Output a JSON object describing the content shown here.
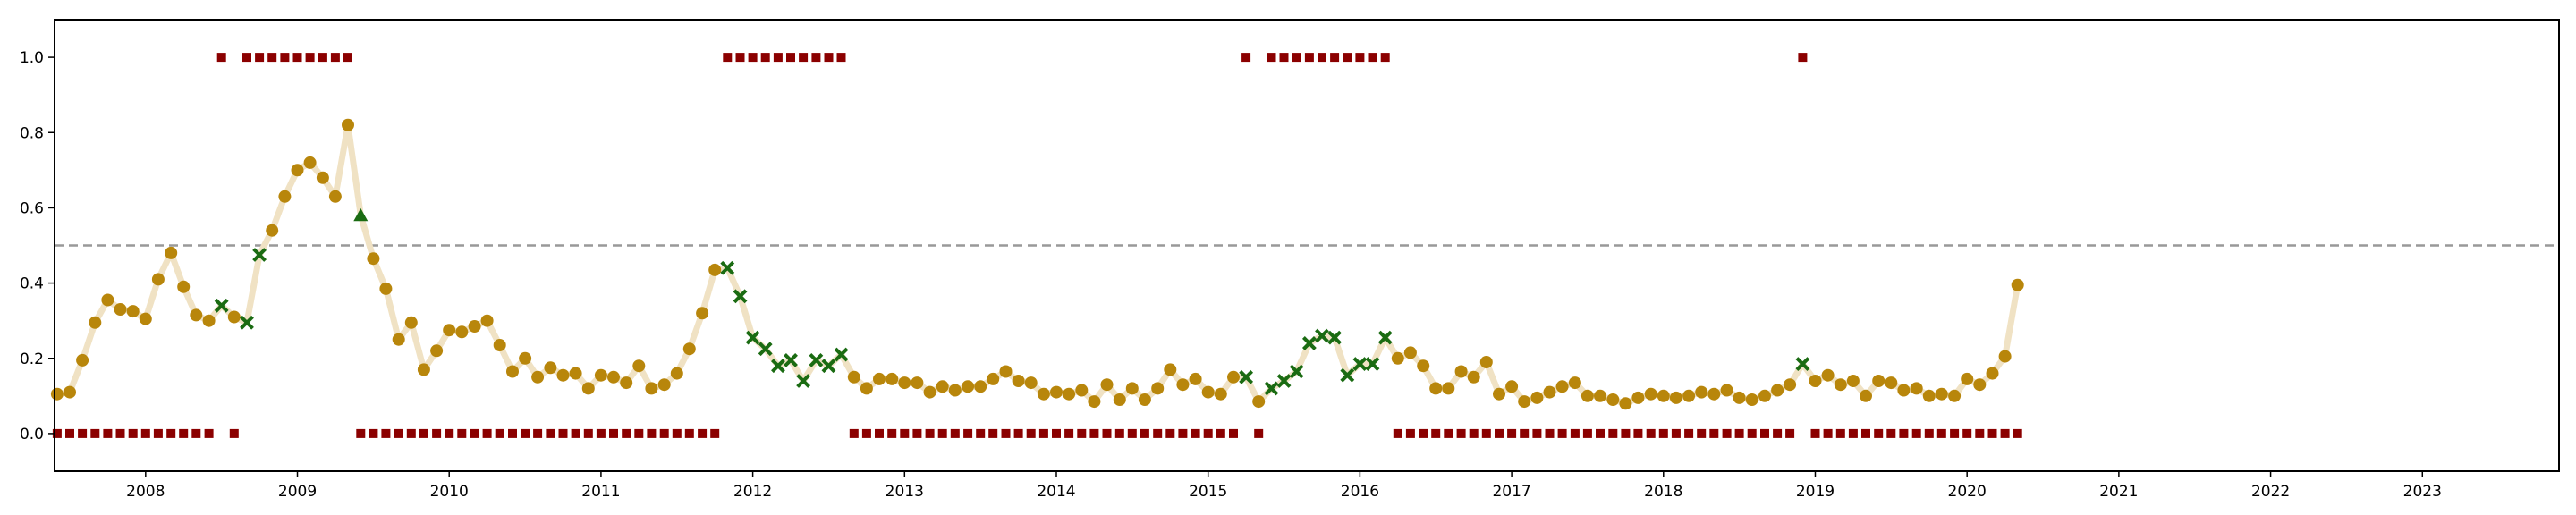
{
  "chart_data": {
    "type": "scatter",
    "title": "",
    "xlabel": "",
    "ylabel": "",
    "xlim": [
      2007.4,
      2023.9
    ],
    "ylim": [
      -0.1,
      1.1
    ],
    "grid": false,
    "x_ticks": [
      "2008",
      "2009",
      "2010",
      "2011",
      "2012",
      "2013",
      "2014",
      "2015",
      "2016",
      "2017",
      "2018",
      "2019",
      "2020",
      "2021",
      "2022",
      "2023"
    ],
    "y_ticks": [
      "0.0",
      "0.2",
      "0.4",
      "0.6",
      "0.8",
      "1.0"
    ],
    "threshold": 0.5,
    "colors": {
      "line": "#f0e2c4",
      "point": "#b8860b",
      "cross": "#1a6b12",
      "triangle": "#1a6b12",
      "square": "#8b0000",
      "threshold": "#999999",
      "axes": "#000000"
    },
    "probability_series": {
      "x": [
        2007.417,
        2007.5,
        2007.583,
        2007.667,
        2007.75,
        2007.833,
        2007.917,
        2008.0,
        2008.083,
        2008.167,
        2008.25,
        2008.333,
        2008.417,
        2008.5,
        2008.583,
        2008.667,
        2008.75,
        2008.833,
        2008.917,
        2009.0,
        2009.083,
        2009.167,
        2009.25,
        2009.333,
        2009.417,
        2009.5,
        2009.583,
        2009.667,
        2009.75,
        2009.833,
        2009.917,
        2010.0,
        2010.083,
        2010.167,
        2010.25,
        2010.333,
        2010.417,
        2010.5,
        2010.583,
        2010.667,
        2010.75,
        2010.833,
        2010.917,
        2011.0,
        2011.083,
        2011.167,
        2011.25,
        2011.333,
        2011.417,
        2011.5,
        2011.583,
        2011.667,
        2011.75,
        2011.833,
        2011.917,
        2012.0,
        2012.083,
        2012.167,
        2012.25,
        2012.333,
        2012.417,
        2012.5,
        2012.583,
        2012.667,
        2012.75,
        2012.833,
        2012.917,
        2013.0,
        2013.083,
        2013.167,
        2013.25,
        2013.333,
        2013.417,
        2013.5,
        2013.583,
        2013.667,
        2013.75,
        2013.833,
        2013.917,
        2014.0,
        2014.083,
        2014.167,
        2014.25,
        2014.333,
        2014.417,
        2014.5,
        2014.583,
        2014.667,
        2014.75,
        2014.833,
        2014.917,
        2015.0,
        2015.083,
        2015.167,
        2015.25,
        2015.333,
        2015.417,
        2015.5,
        2015.583,
        2015.667,
        2015.75,
        2015.833,
        2015.917,
        2016.0,
        2016.083,
        2016.167,
        2016.25,
        2016.333,
        2016.417,
        2016.5,
        2016.583,
        2016.667,
        2016.75,
        2016.833,
        2016.917,
        2017.0,
        2017.083,
        2017.167,
        2017.25,
        2017.333,
        2017.417,
        2017.5,
        2017.583,
        2017.667,
        2017.75,
        2017.833,
        2017.917,
        2018.0,
        2018.083,
        2018.167,
        2018.25,
        2018.333,
        2018.417,
        2018.5,
        2018.583,
        2018.667,
        2018.75,
        2018.833,
        2018.917,
        2019.0,
        2019.083,
        2019.167,
        2019.25,
        2019.333,
        2019.417,
        2019.5,
        2019.583,
        2019.667,
        2019.75,
        2019.833,
        2019.917,
        2020.0,
        2020.083,
        2020.167,
        2020.25,
        2020.333
      ],
      "y": [
        0.105,
        0.11,
        0.195,
        0.295,
        0.355,
        0.33,
        0.325,
        0.305,
        0.41,
        0.48,
        0.39,
        0.315,
        0.3,
        0.34,
        0.31,
        0.295,
        0.475,
        0.54,
        0.63,
        0.7,
        0.72,
        0.68,
        0.63,
        0.82,
        0.58,
        0.465,
        0.385,
        0.25,
        0.295,
        0.17,
        0.22,
        0.275,
        0.27,
        0.285,
        0.3,
        0.235,
        0.165,
        0.2,
        0.15,
        0.175,
        0.155,
        0.16,
        0.12,
        0.155,
        0.15,
        0.135,
        0.18,
        0.12,
        0.13,
        0.16,
        0.225,
        0.32,
        0.435,
        0.44,
        0.365,
        0.255,
        0.225,
        0.18,
        0.195,
        0.14,
        0.195,
        0.18,
        0.21,
        0.15,
        0.12,
        0.145,
        0.145,
        0.135,
        0.135,
        0.11,
        0.125,
        0.115,
        0.125,
        0.125,
        0.145,
        0.165,
        0.14,
        0.135,
        0.105,
        0.11,
        0.105,
        0.115,
        0.085,
        0.13,
        0.09,
        0.12,
        0.09,
        0.12,
        0.17,
        0.13,
        0.145,
        0.11,
        0.105,
        0.15,
        0.15,
        0.085,
        0.12,
        0.14,
        0.165,
        0.24,
        0.26,
        0.255,
        0.155,
        0.185,
        0.185,
        0.255,
        0.2,
        0.215,
        0.18,
        0.12,
        0.12,
        0.165,
        0.15,
        0.19,
        0.105,
        0.125,
        0.085,
        0.095,
        0.11,
        0.125,
        0.135,
        0.1,
        0.1,
        0.09,
        0.08,
        0.095,
        0.105,
        0.1,
        0.095,
        0.1,
        0.11,
        0.105,
        0.115,
        0.095,
        0.09,
        0.1,
        0.115,
        0.13,
        0.185,
        0.14,
        0.155,
        0.13,
        0.14,
        0.1,
        0.14,
        0.135,
        0.115,
        0.12,
        0.1,
        0.105,
        0.1,
        0.145,
        0.13,
        0.16,
        0.205,
        0.395
      ],
      "markers": [
        "circle",
        "circle",
        "circle",
        "circle",
        "circle",
        "circle",
        "circle",
        "circle",
        "circle",
        "circle",
        "circle",
        "circle",
        "circle",
        "x",
        "circle",
        "x",
        "x",
        "circle",
        "circle",
        "circle",
        "circle",
        "circle",
        "circle",
        "circle",
        "triangle",
        "circle",
        "circle",
        "circle",
        "circle",
        "circle",
        "circle",
        "circle",
        "circle",
        "circle",
        "circle",
        "circle",
        "circle",
        "circle",
        "circle",
        "circle",
        "circle",
        "circle",
        "circle",
        "circle",
        "circle",
        "circle",
        "circle",
        "circle",
        "circle",
        "circle",
        "circle",
        "circle",
        "circle",
        "x",
        "x",
        "x",
        "x",
        "x",
        "x",
        "x",
        "x",
        "x",
        "x",
        "circle",
        "circle",
        "circle",
        "circle",
        "circle",
        "circle",
        "circle",
        "circle",
        "circle",
        "circle",
        "circle",
        "circle",
        "circle",
        "circle",
        "circle",
        "circle",
        "circle",
        "circle",
        "circle",
        "circle",
        "circle",
        "circle",
        "circle",
        "circle",
        "circle",
        "circle",
        "circle",
        "circle",
        "circle",
        "circle",
        "circle",
        "x",
        "circle",
        "x",
        "x",
        "x",
        "x",
        "x",
        "x",
        "x",
        "x",
        "x",
        "x",
        "circle",
        "circle",
        "circle",
        "circle",
        "circle",
        "circle",
        "circle",
        "circle",
        "circle",
        "circle",
        "circle",
        "circle",
        "circle",
        "circle",
        "circle",
        "circle",
        "circle",
        "circle",
        "circle",
        "circle",
        "circle",
        "circle",
        "circle",
        "circle",
        "circle",
        "circle",
        "circle",
        "circle",
        "circle",
        "circle",
        "circle",
        "circle",
        "x",
        "circle",
        "circle",
        "circle",
        "circle",
        "circle",
        "circle",
        "circle",
        "circle",
        "circle",
        "circle",
        "circle",
        "circle",
        "circle",
        "circle",
        "circle",
        "circle",
        "circle"
      ]
    },
    "binary_series": {
      "x": [
        2007.417,
        2007.5,
        2007.583,
        2007.667,
        2007.75,
        2007.833,
        2007.917,
        2008.0,
        2008.083,
        2008.167,
        2008.25,
        2008.333,
        2008.417,
        2008.5,
        2008.583,
        2008.667,
        2008.75,
        2008.833,
        2008.917,
        2009.0,
        2009.083,
        2009.167,
        2009.25,
        2009.333,
        2009.417,
        2009.5,
        2009.583,
        2009.667,
        2009.75,
        2009.833,
        2009.917,
        2010.0,
        2010.083,
        2010.167,
        2010.25,
        2010.333,
        2010.417,
        2010.5,
        2010.583,
        2010.667,
        2010.75,
        2010.833,
        2010.917,
        2011.0,
        2011.083,
        2011.167,
        2011.25,
        2011.333,
        2011.417,
        2011.5,
        2011.583,
        2011.667,
        2011.75,
        2011.833,
        2011.917,
        2012.0,
        2012.083,
        2012.167,
        2012.25,
        2012.333,
        2012.417,
        2012.5,
        2012.583,
        2012.667,
        2012.75,
        2012.833,
        2012.917,
        2013.0,
        2013.083,
        2013.167,
        2013.25,
        2013.333,
        2013.417,
        2013.5,
        2013.583,
        2013.667,
        2013.75,
        2013.833,
        2013.917,
        2014.0,
        2014.083,
        2014.167,
        2014.25,
        2014.333,
        2014.417,
        2014.5,
        2014.583,
        2014.667,
        2014.75,
        2014.833,
        2014.917,
        2015.0,
        2015.083,
        2015.167,
        2015.25,
        2015.333,
        2015.417,
        2015.5,
        2015.583,
        2015.667,
        2015.75,
        2015.833,
        2015.917,
        2016.0,
        2016.083,
        2016.167,
        2016.25,
        2016.333,
        2016.417,
        2016.5,
        2016.583,
        2016.667,
        2016.75,
        2016.833,
        2016.917,
        2017.0,
        2017.083,
        2017.167,
        2017.25,
        2017.333,
        2017.417,
        2017.5,
        2017.583,
        2017.667,
        2017.75,
        2017.833,
        2017.917,
        2018.0,
        2018.083,
        2018.167,
        2018.25,
        2018.333,
        2018.417,
        2018.5,
        2018.583,
        2018.667,
        2018.75,
        2018.833,
        2018.917,
        2019.0,
        2019.083,
        2019.167,
        2019.25,
        2019.333,
        2019.417,
        2019.5,
        2019.583,
        2019.667,
        2019.75,
        2019.833,
        2019.917,
        2020.0,
        2020.083,
        2020.167,
        2020.25,
        2020.333
      ],
      "y": [
        0,
        0,
        0,
        0,
        0,
        0,
        0,
        0,
        0,
        0,
        0,
        0,
        0,
        1,
        0,
        1,
        1,
        1,
        1,
        1,
        1,
        1,
        1,
        1,
        0,
        0,
        0,
        0,
        0,
        0,
        0,
        0,
        0,
        0,
        0,
        0,
        0,
        0,
        0,
        0,
        0,
        0,
        0,
        0,
        0,
        0,
        0,
        0,
        0,
        0,
        0,
        0,
        0,
        1,
        1,
        1,
        1,
        1,
        1,
        1,
        1,
        1,
        1,
        0,
        0,
        0,
        0,
        0,
        0,
        0,
        0,
        0,
        0,
        0,
        0,
        0,
        0,
        0,
        0,
        0,
        0,
        0,
        0,
        0,
        0,
        0,
        0,
        0,
        0,
        0,
        0,
        0,
        0,
        0,
        1,
        0,
        1,
        1,
        1,
        1,
        1,
        1,
        1,
        1,
        1,
        1,
        0,
        0,
        0,
        0,
        0,
        0,
        0,
        0,
        0,
        0,
        0,
        0,
        0,
        0,
        0,
        0,
        0,
        0,
        0,
        0,
        0,
        0,
        0,
        0,
        0,
        0,
        0,
        0,
        0,
        0,
        0,
        0,
        1,
        0,
        0,
        0,
        0,
        0,
        0,
        0,
        0,
        0,
        0,
        0,
        0,
        0,
        0,
        0,
        0,
        0
      ]
    }
  }
}
